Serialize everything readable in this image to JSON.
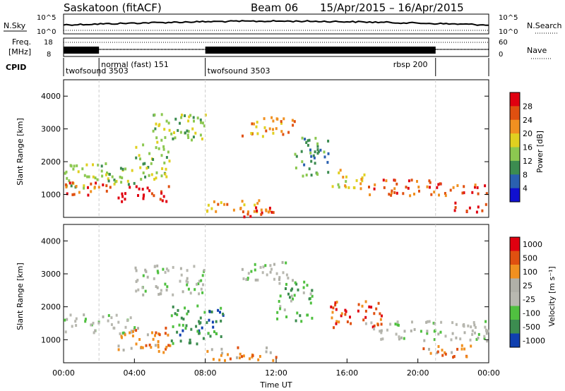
{
  "header": {
    "station": "Saskatoon (fitACF)",
    "beam": "Beam 06",
    "date_range": "15/Apr/2015 – 16/Apr/2015"
  },
  "top_panels": {
    "nsky_label": "N.Sky",
    "nsearch_label": "N.Search",
    "freq_label_1": "Freq.",
    "freq_label_2": "[MHz]",
    "nave_label": "Nave",
    "cpid_label": "CPID",
    "nsky_ticks": [
      "10^5",
      "10^0"
    ],
    "nsearch_ticks": [
      "10^5",
      "10^0"
    ],
    "freq_ticks": [
      "18",
      "8"
    ],
    "nave_ticks": [
      "60",
      "0"
    ],
    "cpid_segments": [
      {
        "label": "twofsound 3503",
        "start": 0.0,
        "end": 2.0,
        "row": 2
      },
      {
        "label": "normal (fast) 151",
        "start": 2.0,
        "end": 8.0,
        "row": 1
      },
      {
        "label": "twofsound 3503",
        "start": 8.0,
        "end": 21.0,
        "row": 2
      },
      {
        "label": "rbsp 200",
        "start": 21.0,
        "end": 24.0,
        "row": 1
      }
    ]
  },
  "chart_data": [
    {
      "type": "heatmap",
      "name": "power",
      "ylabel": "Slant Range [km]",
      "xlabel": "",
      "ylim": [
        300,
        4500
      ],
      "xlim": [
        0,
        24
      ],
      "yticks": [
        "1000",
        "2000",
        "3000",
        "4000"
      ],
      "colorbar_label": "Power [dB]",
      "colorbar_ticks": [
        "4",
        "8",
        "12",
        "16",
        "20",
        "24",
        "28"
      ],
      "colors": [
        "#1010d0",
        "#2a60b0",
        "#3c8c50",
        "#8cc850",
        "#e0d020",
        "#f09020",
        "#e05010",
        "#e00010"
      ],
      "bands": [
        {
          "t": [
            0,
            4
          ],
          "r": [
            1200,
            2000
          ],
          "level": 3
        },
        {
          "t": [
            0,
            3
          ],
          "r": [
            1000,
            1400
          ],
          "level": 6
        },
        {
          "t": [
            3,
            6
          ],
          "r": [
            800,
            1300
          ],
          "level": 7
        },
        {
          "t": [
            4,
            6
          ],
          "r": [
            1500,
            2600
          ],
          "level": 3
        },
        {
          "t": [
            5,
            8
          ],
          "r": [
            2500,
            3500
          ],
          "level": 3
        },
        {
          "t": [
            8,
            12
          ],
          "r": [
            500,
            900
          ],
          "level": 5
        },
        {
          "t": [
            10,
            12
          ],
          "r": [
            350,
            650
          ],
          "level": 7
        },
        {
          "t": [
            10,
            13
          ],
          "r": [
            2800,
            3400
          ],
          "level": 5
        },
        {
          "t": [
            13,
            15
          ],
          "r": [
            1600,
            2800
          ],
          "level": 2
        },
        {
          "t": [
            15,
            17
          ],
          "r": [
            1200,
            1800
          ],
          "level": 4
        },
        {
          "t": [
            17,
            21
          ],
          "r": [
            1000,
            1500
          ],
          "level": 6
        },
        {
          "t": [
            21,
            24
          ],
          "r": [
            1000,
            1400
          ],
          "level": 6
        },
        {
          "t": [
            22,
            24
          ],
          "r": [
            500,
            800
          ],
          "level": 7
        }
      ]
    },
    {
      "type": "heatmap",
      "name": "velocity",
      "ylabel": "Slant Range [km]",
      "xlabel": "Time UT",
      "ylim": [
        300,
        4500
      ],
      "xlim": [
        0,
        24
      ],
      "yticks": [
        "1000",
        "2000",
        "3000",
        "4000"
      ],
      "xticks": [
        "00:00",
        "04:00",
        "08:00",
        "12:00",
        "16:00",
        "20:00",
        "00:00"
      ],
      "colorbar_label": "Velocity [m s⁻¹]",
      "colorbar_ticks": [
        "1000",
        "500",
        "100",
        "25",
        "-25",
        "-100",
        "-500",
        "-1000"
      ],
      "colors": [
        "#1040b0",
        "#3c8c50",
        "#50c040",
        "#b8b8b0",
        "#b0b0a8",
        "#f09020",
        "#e05010",
        "#e00010"
      ],
      "bands": [
        {
          "t": [
            0,
            4
          ],
          "r": [
            1200,
            1800
          ],
          "level": 3
        },
        {
          "t": [
            3,
            6
          ],
          "r": [
            600,
            1400
          ],
          "level": 5
        },
        {
          "t": [
            4,
            8
          ],
          "r": [
            2400,
            3300
          ],
          "level": 3
        },
        {
          "t": [
            6,
            9
          ],
          "r": [
            900,
            2100
          ],
          "level": 1
        },
        {
          "t": [
            8,
            12
          ],
          "r": [
            400,
            800
          ],
          "level": 5
        },
        {
          "t": [
            10,
            13
          ],
          "r": [
            2800,
            3400
          ],
          "level": 3
        },
        {
          "t": [
            12,
            14
          ],
          "r": [
            1600,
            2800
          ],
          "level": 2
        },
        {
          "t": [
            15,
            18
          ],
          "r": [
            1400,
            2200
          ],
          "level": 6
        },
        {
          "t": [
            17,
            24
          ],
          "r": [
            1000,
            1600
          ],
          "level": 3
        },
        {
          "t": [
            20,
            23
          ],
          "r": [
            500,
            900
          ],
          "level": 5
        }
      ]
    }
  ]
}
